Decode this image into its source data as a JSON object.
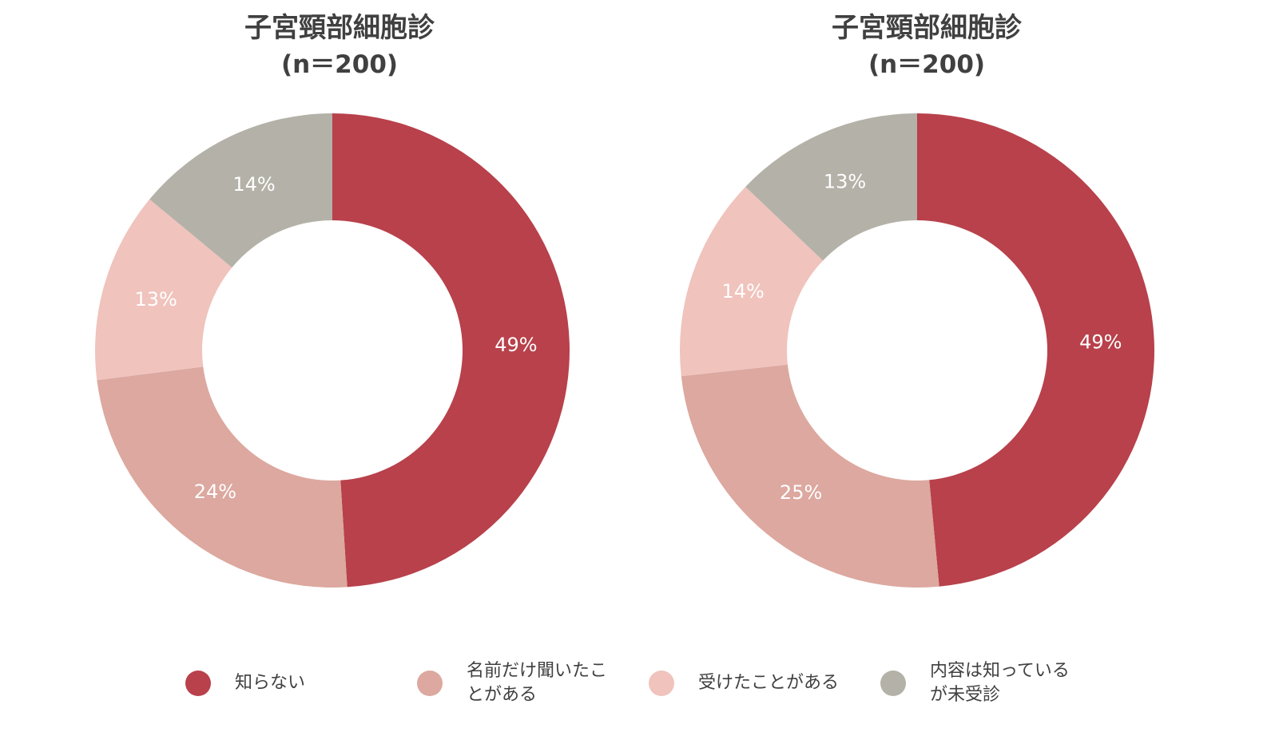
{
  "colors": {
    "shiranai": "#b8414b",
    "namae": "#dca89f",
    "uketa": "#f0c3bd",
    "naiyo": "#b4b1a8"
  },
  "legend": {
    "items": [
      {
        "label_lines": [
          "知らない"
        ],
        "color": "#b8414b"
      },
      {
        "label_lines": [
          "名前だけ聞いたこ",
          "とがある"
        ],
        "color": "#dca89f"
      },
      {
        "label_lines": [
          "受けたことがある"
        ],
        "color": "#f0c3bd"
      },
      {
        "label_lines": [
          "内容は知っている",
          "が未受診"
        ],
        "color": "#b4b1a8"
      }
    ]
  },
  "chart_data": [
    {
      "type": "pie",
      "title": "子宮頸部細胞診",
      "subtitle": "(n＝200)",
      "categories": [
        "知らない",
        "名前だけ聞いたことがある",
        "受けたことがある",
        "内容は知っているが未受診"
      ],
      "values": [
        49,
        24,
        13,
        14
      ],
      "data_labels": [
        "49%",
        "24%",
        "13%",
        "14%"
      ],
      "colors": [
        "#b8414b",
        "#dca89f",
        "#f0c3bd",
        "#b4b1a8"
      ],
      "donut": true,
      "legend": "bottom"
    },
    {
      "type": "pie",
      "title": "子宮頸部細胞診",
      "subtitle": "(n＝200)",
      "categories": [
        "知らない",
        "名前だけ聞いたことがある",
        "受けたことがある",
        "内容は知っているが未受診"
      ],
      "values": [
        49,
        25,
        14,
        13
      ],
      "data_labels": [
        "49%",
        "25%",
        "14%",
        "13%"
      ],
      "colors": [
        "#b8414b",
        "#dca89f",
        "#f0c3bd",
        "#b4b1a8"
      ],
      "donut": true,
      "legend": "bottom"
    }
  ]
}
